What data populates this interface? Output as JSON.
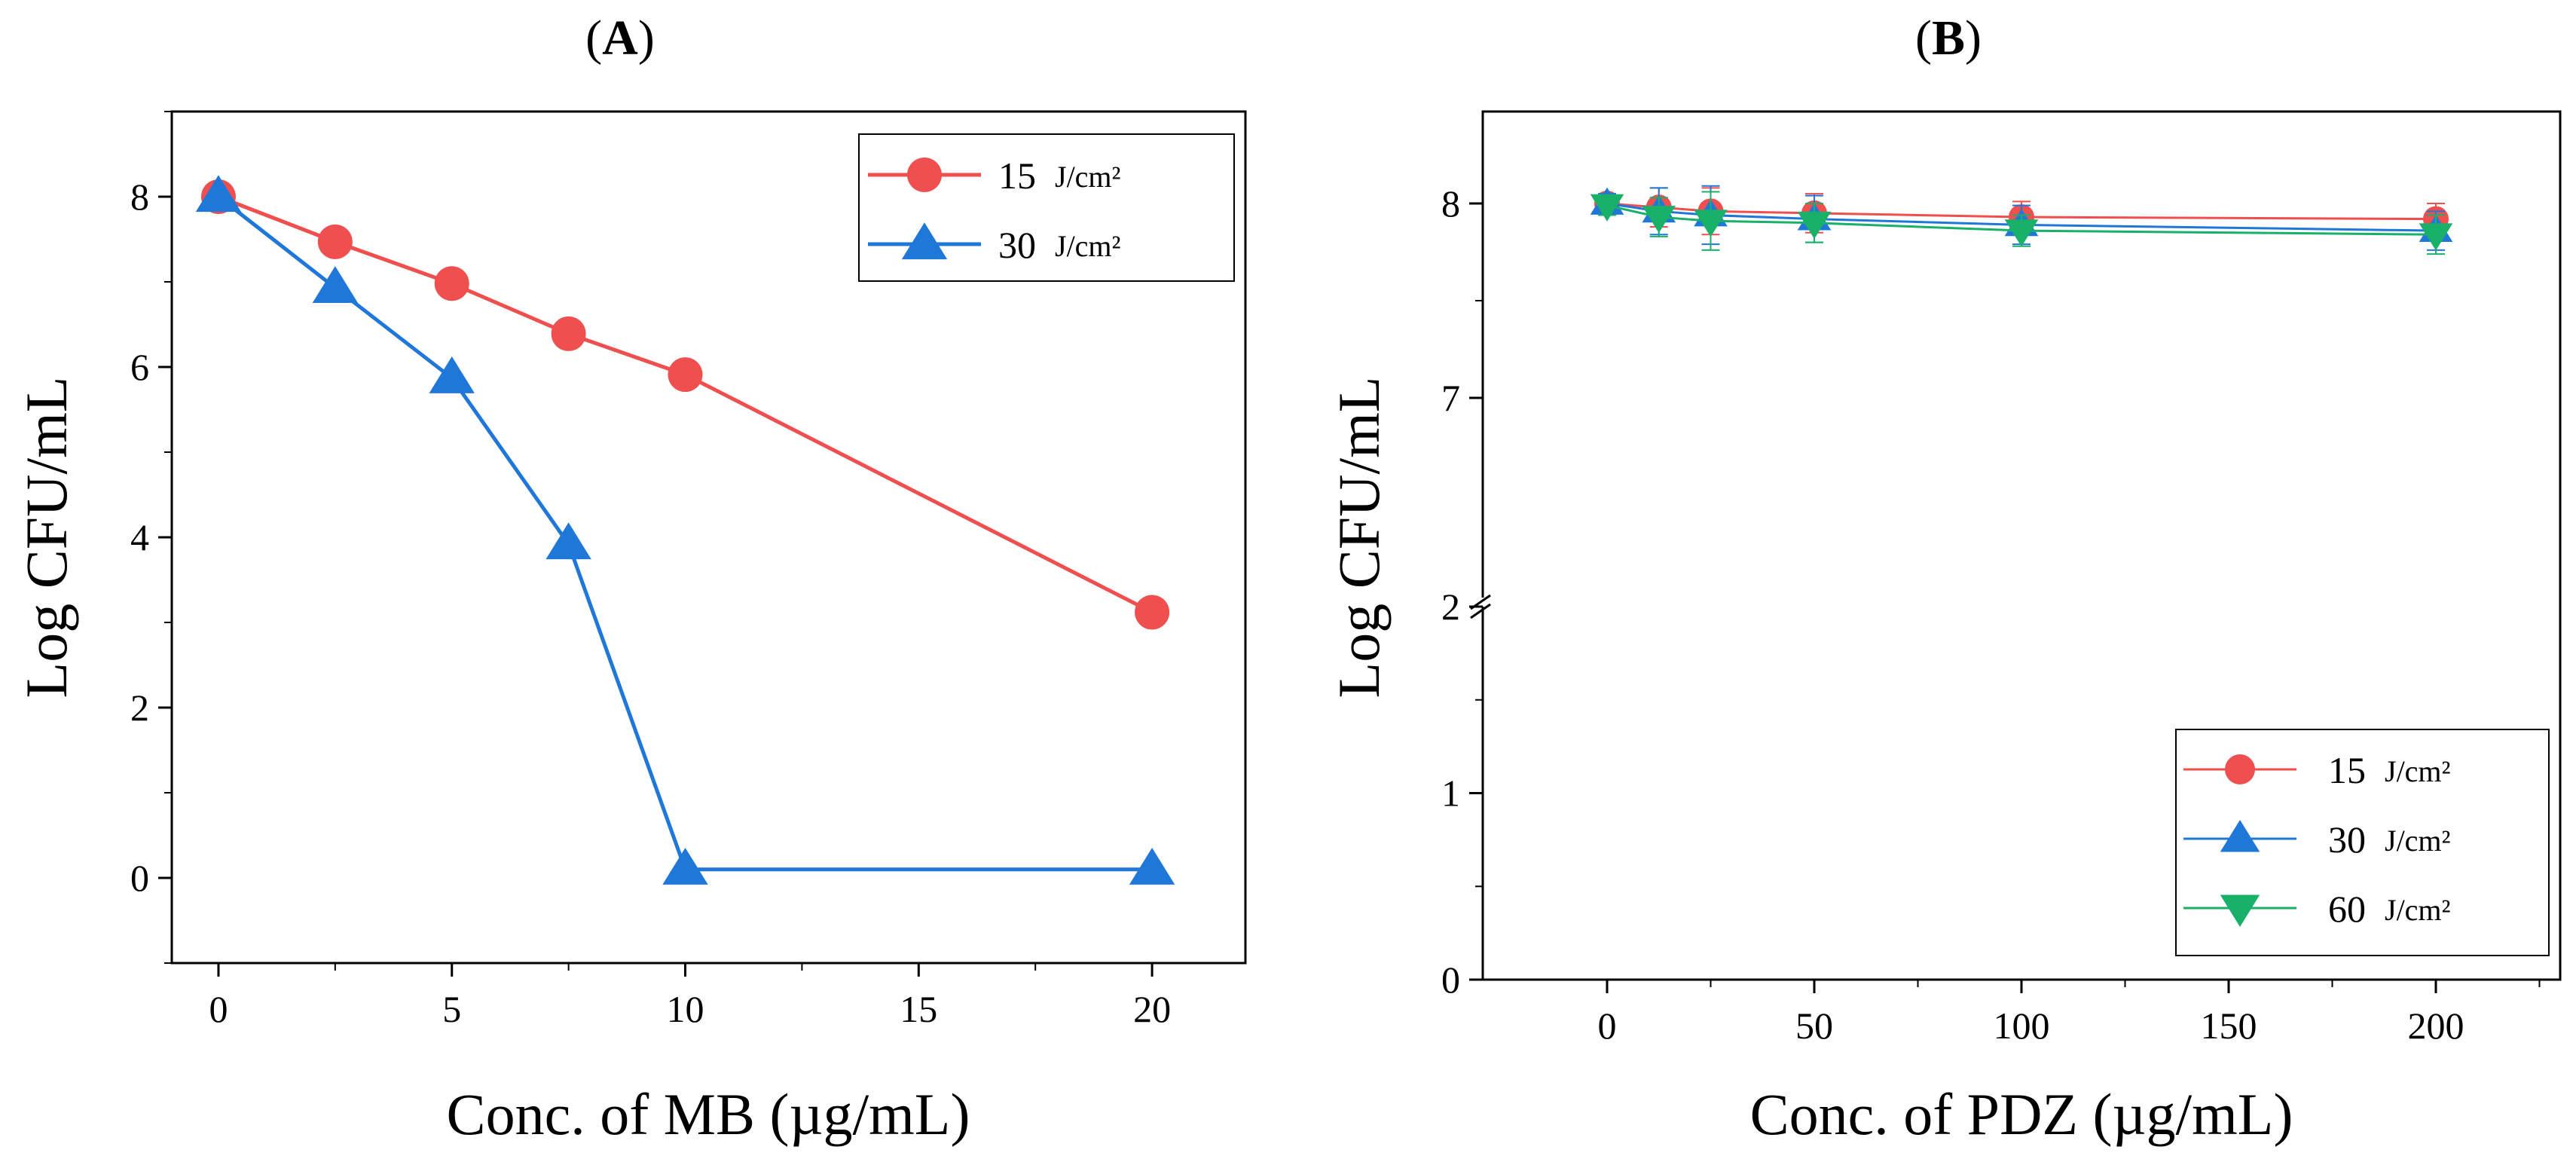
{
  "chart_data": [
    {
      "type": "line",
      "panel_label": "A",
      "xlabel": "Conc. of MB (µg/mL)",
      "ylabel": "Log CFU/mL",
      "xlim": [
        -1,
        22
      ],
      "ylim": [
        -1,
        9
      ],
      "xticks": [
        0,
        5,
        10,
        15,
        20
      ],
      "yticks": [
        0,
        2,
        4,
        6,
        8
      ],
      "grid": false,
      "legend_position": "top-right",
      "series": [
        {
          "name": "15 J/cm²",
          "legend_value": "15",
          "legend_unit": "J/cm²",
          "color": "#f04f4f",
          "marker": "circle",
          "x": [
            0,
            2.5,
            5,
            7.5,
            10,
            20
          ],
          "y": [
            8.0,
            7.47,
            6.98,
            6.39,
            5.91,
            3.12
          ]
        },
        {
          "name": "30 J/cm²",
          "legend_value": "30",
          "legend_unit": "J/cm²",
          "color": "#1f78d8",
          "marker": "triangle-up",
          "x": [
            0,
            2.5,
            5,
            7.5,
            10,
            20
          ],
          "y": [
            8.0,
            6.93,
            5.87,
            3.92,
            0.1,
            0.1
          ]
        }
      ]
    },
    {
      "type": "line",
      "panel_label": "B",
      "xlabel": "Conc. of PDZ (µg/mL)",
      "ylabel": "Log CFU/mL",
      "xlim": [
        -30,
        230
      ],
      "y_axis_break": {
        "lower": [
          0,
          2
        ],
        "upper": [
          7,
          8.5
        ]
      },
      "xticks": [
        0,
        50,
        100,
        150,
        200
      ],
      "yticks": [
        0,
        1,
        2,
        7,
        8
      ],
      "grid": false,
      "legend_position": "bottom-right",
      "series": [
        {
          "name": "15 J/cm²",
          "legend_value": "15",
          "legend_unit": "J/cm²",
          "color": "#f04f4f",
          "marker": "circle",
          "x": [
            0,
            12.5,
            25,
            50,
            100,
            200
          ],
          "y": [
            8.0,
            7.98,
            7.96,
            7.95,
            7.93,
            7.92
          ],
          "error": [
            0.05,
            0.1,
            0.12,
            0.1,
            0.08,
            0.08
          ]
        },
        {
          "name": "30 J/cm²",
          "legend_value": "30",
          "legend_unit": "J/cm²",
          "color": "#1f78d8",
          "marker": "triangle-up",
          "x": [
            0,
            12.5,
            25,
            50,
            100,
            200
          ],
          "y": [
            8.0,
            7.96,
            7.94,
            7.92,
            7.89,
            7.86
          ],
          "error": [
            0.05,
            0.12,
            0.15,
            0.12,
            0.1,
            0.1
          ]
        },
        {
          "name": "60 J/cm²",
          "legend_value": "60",
          "legend_unit": "J/cm²",
          "color": "#19b06a",
          "marker": "triangle-down",
          "x": [
            0,
            12.5,
            25,
            50,
            100,
            200
          ],
          "y": [
            7.99,
            7.93,
            7.91,
            7.9,
            7.86,
            7.84
          ],
          "error": [
            0.05,
            0.1,
            0.15,
            0.1,
            0.08,
            0.1
          ]
        }
      ]
    }
  ]
}
